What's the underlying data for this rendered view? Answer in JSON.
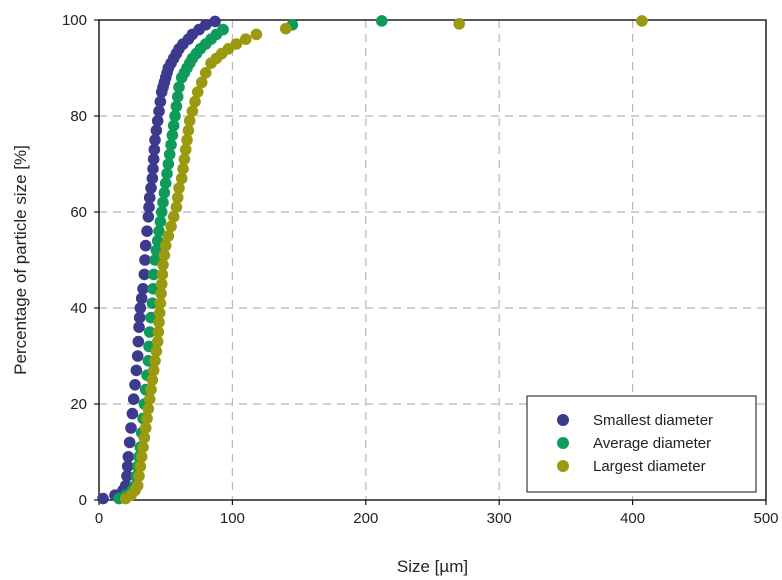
{
  "chart_data": {
    "type": "scatter",
    "title": "",
    "xlabel": "Size [µm]",
    "ylabel": "Percentage of particle size [%]",
    "xlim": [
      0,
      500
    ],
    "ylim": [
      0,
      100
    ],
    "xticks": [
      0,
      100,
      200,
      300,
      400,
      500
    ],
    "yticks": [
      0,
      20,
      40,
      60,
      80,
      100
    ],
    "grid": true,
    "grid_style": "dashed",
    "legend_position": "bottom-right",
    "series": [
      {
        "name": "Smallest diameter",
        "color": "#3b3a8c",
        "points": [
          [
            3,
            0.3
          ],
          [
            12,
            1
          ],
          [
            18,
            2
          ],
          [
            20,
            3
          ],
          [
            21,
            5
          ],
          [
            21.5,
            7
          ],
          [
            22,
            9
          ],
          [
            23,
            12
          ],
          [
            24,
            15
          ],
          [
            25,
            18
          ],
          [
            26,
            21
          ],
          [
            27,
            24
          ],
          [
            28,
            27
          ],
          [
            29,
            30
          ],
          [
            29.5,
            33
          ],
          [
            30,
            36
          ],
          [
            30.5,
            38
          ],
          [
            31,
            40
          ],
          [
            32,
            42
          ],
          [
            33,
            44
          ],
          [
            34,
            47
          ],
          [
            34.5,
            50
          ],
          [
            35,
            53
          ],
          [
            36,
            56
          ],
          [
            37,
            59
          ],
          [
            37.5,
            61
          ],
          [
            38,
            63
          ],
          [
            39,
            65
          ],
          [
            40,
            67
          ],
          [
            40.5,
            69
          ],
          [
            41,
            71
          ],
          [
            41.5,
            73
          ],
          [
            42,
            75
          ],
          [
            43,
            77
          ],
          [
            44,
            79
          ],
          [
            45,
            81
          ],
          [
            46,
            83
          ],
          [
            47,
            85
          ],
          [
            48,
            86
          ],
          [
            49,
            87
          ],
          [
            50,
            88
          ],
          [
            51,
            89
          ],
          [
            52,
            90
          ],
          [
            54,
            91
          ],
          [
            56,
            92
          ],
          [
            58,
            93
          ],
          [
            60,
            94
          ],
          [
            63,
            95
          ],
          [
            67,
            96
          ],
          [
            70,
            97
          ],
          [
            75,
            98
          ],
          [
            80,
            99
          ],
          [
            87,
            99.7
          ]
        ]
      },
      {
        "name": "Average diameter",
        "color": "#0e9b5a",
        "points": [
          [
            15,
            0.3
          ],
          [
            20,
            1
          ],
          [
            25,
            2
          ],
          [
            27,
            3
          ],
          [
            28,
            5
          ],
          [
            29,
            7
          ],
          [
            30,
            9
          ],
          [
            31,
            11
          ],
          [
            32,
            14
          ],
          [
            33,
            17
          ],
          [
            34,
            20
          ],
          [
            35,
            23
          ],
          [
            36,
            26
          ],
          [
            37,
            29
          ],
          [
            37.5,
            32
          ],
          [
            38,
            35
          ],
          [
            39,
            38
          ],
          [
            40,
            41
          ],
          [
            40.5,
            44
          ],
          [
            41,
            47
          ],
          [
            42,
            50
          ],
          [
            43,
            52
          ],
          [
            44,
            54
          ],
          [
            45,
            56
          ],
          [
            46,
            58
          ],
          [
            47,
            60
          ],
          [
            48,
            62
          ],
          [
            49,
            64
          ],
          [
            50,
            66
          ],
          [
            51,
            68
          ],
          [
            52,
            70
          ],
          [
            53,
            72
          ],
          [
            54,
            74
          ],
          [
            55,
            76
          ],
          [
            56,
            78
          ],
          [
            57,
            80
          ],
          [
            58,
            82
          ],
          [
            59,
            84
          ],
          [
            60,
            86
          ],
          [
            62,
            88
          ],
          [
            64,
            89
          ],
          [
            66,
            90
          ],
          [
            68,
            91
          ],
          [
            70,
            92
          ],
          [
            73,
            93
          ],
          [
            76,
            94
          ],
          [
            80,
            95
          ],
          [
            84,
            96
          ],
          [
            88,
            97
          ],
          [
            93,
            98
          ],
          [
            145,
            99
          ],
          [
            212,
            99.8
          ]
        ]
      },
      {
        "name": "Largest diameter",
        "color": "#9a9a10",
        "points": [
          [
            20,
            0.3
          ],
          [
            24,
            1
          ],
          [
            27,
            2
          ],
          [
            29,
            3
          ],
          [
            30,
            5
          ],
          [
            31,
            7
          ],
          [
            32,
            9
          ],
          [
            33,
            11
          ],
          [
            34,
            13
          ],
          [
            35,
            15
          ],
          [
            36,
            17
          ],
          [
            37,
            19
          ],
          [
            38,
            21
          ],
          [
            39,
            23
          ],
          [
            40,
            25
          ],
          [
            41,
            27
          ],
          [
            42,
            29
          ],
          [
            43,
            31
          ],
          [
            44,
            33
          ],
          [
            44.5,
            35
          ],
          [
            45,
            37
          ],
          [
            45.5,
            39
          ],
          [
            46,
            41
          ],
          [
            46.5,
            43
          ],
          [
            47,
            45
          ],
          [
            47.5,
            47
          ],
          [
            48,
            49
          ],
          [
            49,
            51
          ],
          [
            50,
            53
          ],
          [
            52,
            55
          ],
          [
            54,
            57
          ],
          [
            56,
            59
          ],
          [
            58,
            61
          ],
          [
            59,
            63
          ],
          [
            60,
            65
          ],
          [
            62,
            67
          ],
          [
            63,
            69
          ],
          [
            64,
            71
          ],
          [
            65,
            73
          ],
          [
            66,
            75
          ],
          [
            67,
            77
          ],
          [
            68,
            79
          ],
          [
            70,
            81
          ],
          [
            72,
            83
          ],
          [
            74,
            85
          ],
          [
            77,
            87
          ],
          [
            80,
            89
          ],
          [
            84,
            91
          ],
          [
            88,
            92
          ],
          [
            92,
            93
          ],
          [
            97,
            94
          ],
          [
            103,
            95
          ],
          [
            110,
            96
          ],
          [
            118,
            97
          ],
          [
            140,
            98.2
          ],
          [
            270,
            99.2
          ],
          [
            407,
            99.8
          ]
        ]
      }
    ]
  }
}
